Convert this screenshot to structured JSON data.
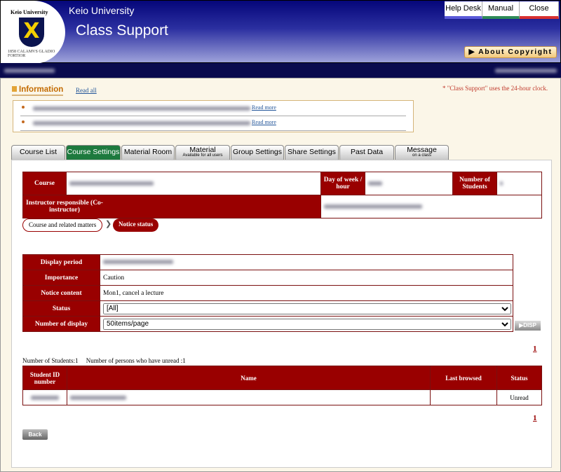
{
  "header": {
    "logo_text": "Keio University",
    "logo_motto": "1858 CALAMVS GLADIO FORTIOR",
    "university": "Keio University",
    "app_title": "Class Support",
    "buttons": [
      {
        "label": "Help Desk",
        "accent": "#5a5ad8"
      },
      {
        "label": "Manual",
        "accent": "#2e8b57"
      },
      {
        "label": "Close",
        "accent": "#d83030"
      }
    ],
    "copyright": "▶ About Copyright"
  },
  "info": {
    "title": "Information",
    "read_all": "Read all",
    "clock_note": "* \"Class Support\" uses the 24-hour clock.",
    "items": [
      {
        "link": "Read more"
      },
      {
        "link": "Read more"
      }
    ]
  },
  "tabs": [
    {
      "label": "Course List"
    },
    {
      "label": "Course Settings",
      "active": true
    },
    {
      "label": "Material Room"
    },
    {
      "label": "Material",
      "sub": "Available for all users"
    },
    {
      "label": "Group Settings"
    },
    {
      "label": "Share Settings"
    },
    {
      "label": "Past Data"
    },
    {
      "label": "Message",
      "sub": "on a class"
    }
  ],
  "course": {
    "course_label": "Course",
    "day_label": "Day of week / hour",
    "students_label": "Number of Students",
    "instructor_label": "Instructor responsible (Co-instructor)"
  },
  "breadcrumb": {
    "step1": "Course and related matters",
    "sep": "❯",
    "step2": "Notice status"
  },
  "notice": {
    "display_period_label": "Display period",
    "importance_label": "Importance",
    "importance": "Caution",
    "content_label": "Notice content",
    "content": "Mon1, cancel a lecture",
    "status_label": "Status",
    "status_value": "[All]",
    "display_label": "Number of display",
    "display_value": "50items/page",
    "disp_button": "▶DISP"
  },
  "pagination": {
    "page": "1"
  },
  "counts": {
    "students": "Number of Students:1",
    "unread": "Number of persons who have unread :1"
  },
  "students_table": {
    "headers": [
      "Student ID number",
      "Name",
      "Last browsed",
      "Status"
    ],
    "rows": [
      {
        "status": "Unread"
      }
    ]
  },
  "back": "Back"
}
